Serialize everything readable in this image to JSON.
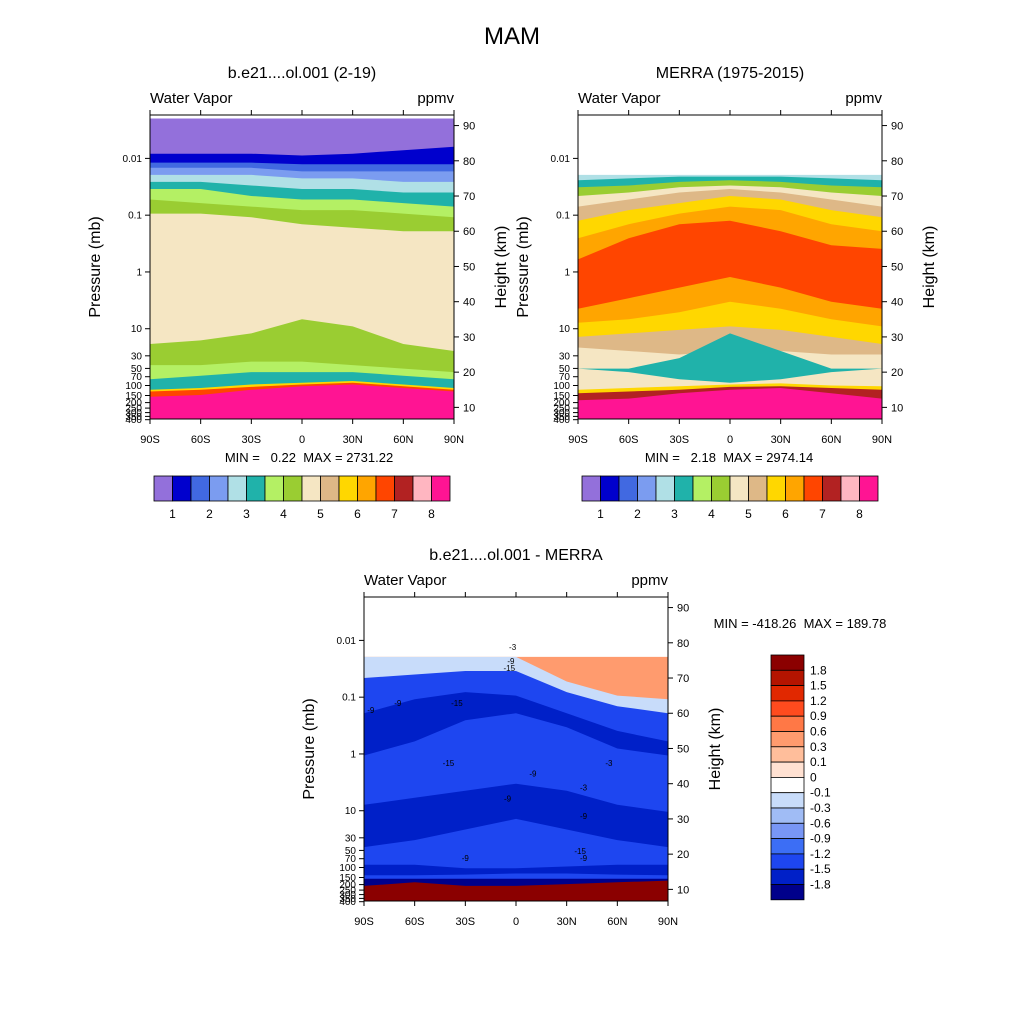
{
  "figure": {
    "title": "MAM"
  },
  "colors": {
    "wv": [
      "#9370db",
      "#0000cd",
      "#4169e1",
      "#7b9cf0",
      "#b0e0e6",
      "#20b2aa",
      "#b4f064",
      "#9acd32",
      "#f5e6c3",
      "#deb887",
      "#ffd700",
      "#ffa500",
      "#ff4500",
      "#b22222",
      "#ffb6c1",
      "#ff1493"
    ],
    "diff": [
      "#00008b",
      "#0020c8",
      "#1e46f0",
      "#3c6ef5",
      "#7896f5",
      "#a0bcf5",
      "#c8dcfa",
      "#ffffff",
      "#ffe1d2",
      "#ffbe9b",
      "#ff9b6e",
      "#ff7846",
      "#ff4b1e",
      "#e12800",
      "#b41400",
      "#8b0000"
    ]
  },
  "chart_data": [
    {
      "type": "heatmap",
      "id": "model",
      "title": "b.e21....ol.001 (2-19)",
      "left_label": "Water Vapor",
      "right_label": "ppmv",
      "ylabel": "Pressure (mb)",
      "y2label": "Height (km)",
      "x_ticks": [
        "90S",
        "60S",
        "30S",
        "0",
        "30N",
        "60N",
        "90N"
      ],
      "x_range": [
        -90,
        90
      ],
      "y_pressure_ticks": [
        "0.01",
        "0.1",
        "1",
        "10",
        "30",
        "50",
        "70",
        "100",
        "150",
        "200",
        "250",
        "300",
        "350",
        "400"
      ],
      "y_height_ticks": [
        "90",
        "80",
        "70",
        "60",
        "50",
        "40",
        "30",
        "20",
        "10"
      ],
      "stats": "MIN =   0.22  MAX = 2731.22",
      "colorbar_labels": [
        "1",
        "2",
        "3",
        "4",
        "5",
        "6",
        "7",
        "8"
      ],
      "layers_top_km": [
        {
          "level": 15,
          "top_km": [
            13,
            13.5,
            15,
            16,
            16.5,
            15.5,
            14.5
          ]
        },
        {
          "level": 12,
          "top_km": [
            14.5,
            15,
            15.8,
            16.5,
            17,
            16,
            15
          ]
        },
        {
          "level": 10,
          "top_km": [
            15,
            15.5,
            16.5,
            17,
            17.5,
            16.5,
            15.5
          ]
        },
        {
          "level": 5,
          "top_km": [
            18,
            19,
            20,
            20,
            20,
            19,
            18
          ]
        },
        {
          "level": 6,
          "top_km": [
            22,
            22,
            23,
            23,
            22,
            21,
            20
          ]
        },
        {
          "level": 7,
          "top_km": [
            28,
            29,
            31,
            35,
            33,
            28,
            26
          ]
        },
        {
          "level": 8,
          "top_km": [
            65,
            65,
            64,
            62,
            61,
            60,
            60
          ]
        },
        {
          "level": 7,
          "top_km": [
            69,
            68,
            67,
            66,
            66,
            65,
            64
          ]
        },
        {
          "level": 6,
          "top_km": [
            72,
            72,
            70,
            69,
            69,
            68,
            67
          ]
        },
        {
          "level": 5,
          "top_km": [
            74,
            74,
            73,
            72,
            72,
            71,
            71
          ]
        },
        {
          "level": 4,
          "top_km": [
            76,
            76,
            76,
            75,
            75,
            74,
            74
          ]
        },
        {
          "level": 3,
          "top_km": [
            78,
            78,
            78,
            77,
            77,
            77,
            77
          ]
        },
        {
          "level": 2,
          "top_km": [
            79.5,
            79.5,
            79.5,
            79,
            79,
            79,
            79
          ]
        },
        {
          "level": 1,
          "top_km": [
            82,
            82,
            82,
            81.5,
            82,
            83,
            84
          ]
        },
        {
          "level": 0,
          "top_km": [
            92,
            92,
            92,
            92,
            92,
            92,
            92
          ]
        }
      ]
    },
    {
      "type": "heatmap",
      "id": "merra",
      "title": "MERRA (1975-2015)",
      "left_label": "Water Vapor",
      "right_label": "ppmv",
      "ylabel": "Pressure (mb)",
      "y2label": "Height (km)",
      "x_ticks": [
        "90S",
        "60S",
        "30S",
        "0",
        "30N",
        "60N",
        "90N"
      ],
      "x_range": [
        -90,
        90
      ],
      "y_pressure_ticks": [
        "0.01",
        "0.1",
        "1",
        "10",
        "30",
        "50",
        "70",
        "100",
        "150",
        "200",
        "250",
        "300",
        "350",
        "400"
      ],
      "y_height_ticks": [
        "90",
        "80",
        "70",
        "60",
        "50",
        "40",
        "30",
        "20",
        "10"
      ],
      "stats": "MIN =   2.18  MAX = 2974.14",
      "colorbar_labels": [
        "1",
        "2",
        "3",
        "4",
        "5",
        "6",
        "7",
        "8"
      ],
      "data_top_km": 76,
      "layers_top_km": [
        {
          "level": 15,
          "top_km": [
            12,
            12.5,
            14,
            15,
            15.5,
            14,
            12.5
          ]
        },
        {
          "level": 13,
          "top_km": [
            14,
            14.5,
            15,
            15.8,
            16,
            15.5,
            15
          ]
        },
        {
          "level": 10,
          "top_km": [
            15,
            15.5,
            16,
            16.5,
            16.8,
            16.2,
            16
          ]
        },
        {
          "level": 8,
          "top_km": [
            21,
            20,
            18,
            17,
            18,
            20,
            21
          ]
        },
        {
          "level": 5,
          "top_km": [
            21,
            21,
            24,
            31,
            26,
            21,
            21
          ]
        },
        {
          "level": 8,
          "top_km": [
            27,
            26,
            25,
            26,
            26,
            25,
            25
          ]
        },
        {
          "level": 9,
          "top_km": [
            30,
            31,
            32,
            33,
            32,
            30,
            28
          ]
        },
        {
          "level": 10,
          "top_km": [
            34,
            35,
            37,
            40,
            38,
            35,
            33
          ]
        },
        {
          "level": 11,
          "top_km": [
            38,
            41,
            44,
            47,
            44,
            40,
            38
          ]
        },
        {
          "level": 12,
          "top_km": [
            52,
            58,
            62,
            63,
            60,
            56,
            55
          ]
        },
        {
          "level": 11,
          "top_km": [
            58,
            62,
            65,
            67,
            66,
            62,
            60
          ]
        },
        {
          "level": 10,
          "top_km": [
            63,
            66,
            68,
            70,
            69,
            66,
            64
          ]
        },
        {
          "level": 9,
          "top_km": [
            67,
            69,
            71,
            72,
            71,
            69,
            67
          ]
        },
        {
          "level": 8,
          "top_km": [
            70,
            71,
            72.5,
            73,
            72.5,
            71,
            70
          ]
        },
        {
          "level": 7,
          "top_km": [
            72.5,
            73,
            74,
            74.5,
            74,
            73,
            72.5
          ]
        },
        {
          "level": 5,
          "top_km": [
            74.5,
            75,
            75.5,
            75.5,
            75.5,
            75,
            74.5
          ]
        },
        {
          "level": 4,
          "top_km": [
            76,
            76,
            76,
            76,
            76,
            76,
            76
          ]
        }
      ]
    },
    {
      "type": "heatmap",
      "id": "diff",
      "title": "b.e21....ol.001 - MERRA",
      "left_label": "Water Vapor",
      "right_label": "ppmv",
      "ylabel": "Pressure (mb)",
      "y2label": "Height (km)",
      "x_ticks": [
        "90S",
        "60S",
        "30S",
        "0",
        "30N",
        "60N",
        "90N"
      ],
      "x_range": [
        -90,
        90
      ],
      "y_pressure_ticks": [
        "0.01",
        "0.1",
        "1",
        "10",
        "30",
        "50",
        "70",
        "100",
        "150",
        "200",
        "250",
        "300",
        "350",
        "400"
      ],
      "y_height_ticks": [
        "90",
        "80",
        "70",
        "60",
        "50",
        "40",
        "30",
        "20",
        "10"
      ],
      "stats": "MIN = -418.26  MAX = 189.78",
      "colorbar_labels": [
        "1.8",
        "1.5",
        "1.2",
        "0.9",
        "0.6",
        "0.3",
        "0.1",
        "0",
        "-0.1",
        "-0.3",
        "-0.6",
        "-0.9",
        "-1.2",
        "-1.5",
        "-1.8"
      ],
      "contour_labels": [
        "-3",
        "-9",
        "-15",
        "-9",
        "-9",
        "-15",
        "-15",
        "-9",
        "-9",
        "-3",
        "-3",
        "-9",
        "-15",
        "-9",
        "-9"
      ],
      "data_top_km": 76,
      "layers_top_km": [
        {
          "level": 15,
          "top_km": [
            11,
            12,
            11,
            11,
            11.5,
            12,
            12.5
          ]
        },
        {
          "level": 0,
          "top_km": [
            13,
            13,
            13,
            13,
            13,
            13,
            13
          ]
        },
        {
          "level": 2,
          "top_km": [
            14,
            14,
            14.2,
            14.5,
            14.5,
            14.2,
            14
          ]
        },
        {
          "level": 1,
          "top_km": [
            17,
            17,
            16,
            16,
            16.5,
            17,
            17
          ]
        },
        {
          "level": 2,
          "top_km": [
            22,
            24,
            27,
            30,
            27,
            24,
            22
          ]
        },
        {
          "level": 1,
          "top_km": [
            34,
            36,
            38,
            40,
            38,
            34,
            32
          ]
        },
        {
          "level": 2,
          "top_km": [
            48,
            52,
            58,
            60,
            56,
            50,
            48
          ]
        },
        {
          "level": 1,
          "top_km": [
            60,
            64,
            66,
            65,
            60,
            55,
            52
          ]
        },
        {
          "level": 2,
          "top_km": [
            70,
            71,
            72,
            72,
            66,
            62,
            60
          ]
        },
        {
          "level": 6,
          "top_km": [
            76,
            76,
            76,
            76,
            69,
            65,
            64
          ]
        },
        {
          "level": 10,
          "top_km": [
            76,
            76,
            76,
            76,
            76,
            76,
            76
          ]
        }
      ]
    }
  ]
}
